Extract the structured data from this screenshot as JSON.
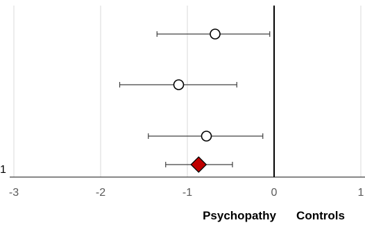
{
  "chart_data": {
    "type": "forest",
    "xlim": [
      -3,
      1
    ],
    "x_ticks": [
      -3,
      -2,
      -1,
      0,
      1
    ],
    "x_tick_labels": [
      "-3",
      "-2",
      "-1",
      "0",
      "1"
    ],
    "grid": "vertical",
    "reference_line_x": 0,
    "left_labels": [
      {
        "row": 4,
        "text": "1"
      }
    ],
    "group_labels": {
      "left": "Psychopathy",
      "right": "Controls"
    },
    "rows": [
      {
        "row": 1,
        "estimate": -0.68,
        "ci_low": -1.35,
        "ci_high": -0.05,
        "marker": "circle"
      },
      {
        "row": 2,
        "estimate": -1.1,
        "ci_low": -1.78,
        "ci_high": -0.43,
        "marker": "circle"
      },
      {
        "row": 3,
        "estimate": -0.78,
        "ci_low": -1.45,
        "ci_high": -0.13,
        "marker": "circle"
      },
      {
        "row": 4,
        "estimate": -0.87,
        "ci_low": -1.25,
        "ci_high": -0.48,
        "marker": "diamond",
        "color": "#c00000"
      }
    ],
    "colors": {
      "grid": "#d9d9d9",
      "axis": "#000000",
      "whisker": "#404040",
      "summary_fill": "#c00000"
    }
  }
}
